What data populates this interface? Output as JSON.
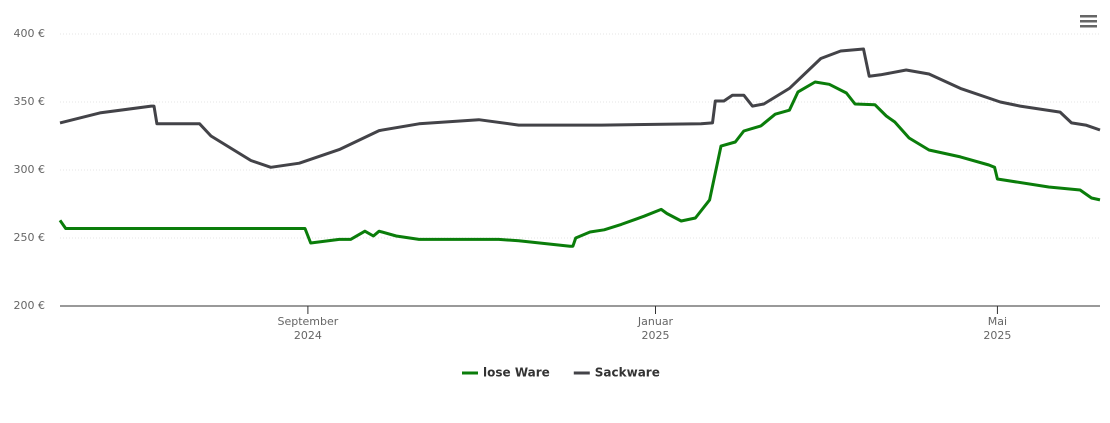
{
  "chart_data": {
    "type": "line",
    "xlim": [
      0,
      365
    ],
    "xticks": [
      {
        "value": 87,
        "label": "September",
        "year": "2024"
      },
      {
        "value": 209,
        "label": "Januar",
        "year": "2025"
      },
      {
        "value": 329,
        "label": "Mai",
        "year": "2025"
      }
    ],
    "ylim": [
      200,
      400
    ],
    "yticks": [
      {
        "value": 200,
        "label": "200 €"
      },
      {
        "value": 250,
        "label": "250 €"
      },
      {
        "value": 300,
        "label": "300 €"
      },
      {
        "value": 350,
        "label": "350 €"
      },
      {
        "value": 400,
        "label": "400 €"
      }
    ],
    "grid": true,
    "legend": "bottom",
    "series": [
      {
        "name": "lose Ware",
        "color": "#0a7d0a",
        "x": [
          0,
          2,
          86,
          88,
          98,
          102,
          107,
          110,
          112,
          118,
          126,
          154,
          161,
          179,
          180,
          181,
          186,
          191,
          197,
          205,
          211,
          213,
          218,
          223,
          228,
          232,
          237,
          240,
          246,
          251,
          256,
          259,
          265,
          270,
          276,
          279,
          286,
          290,
          293,
          298,
          305,
          316,
          326,
          328,
          329,
          347,
          358,
          362,
          365
        ],
        "values": [
          263,
          257,
          257,
          246.3,
          249,
          249,
          255,
          251.5,
          255,
          251.5,
          249,
          249,
          248,
          244,
          244,
          250,
          254.4,
          256,
          260,
          266,
          271,
          268,
          262.5,
          264.7,
          278,
          317.6,
          320.6,
          328.7,
          332.4,
          341,
          344,
          357.4,
          364.7,
          363,
          356.6,
          348.5,
          348,
          339.7,
          335.3,
          323.5,
          314.7,
          309.6,
          303.7,
          302,
          293.4,
          287.5,
          285.3,
          279.4,
          278
        ]
      },
      {
        "name": "Sackware",
        "color": "#434348",
        "x": [
          0,
          14,
          32,
          33,
          34,
          49,
          53,
          67,
          74,
          84,
          98,
          112,
          126,
          147,
          161,
          190,
          225,
          229,
          230,
          233,
          236,
          240,
          243,
          247,
          256,
          267,
          274,
          282,
          284,
          288,
          297,
          305,
          316,
          330,
          337,
          351,
          355,
          360,
          365
        ],
        "values": [
          334.6,
          342,
          347,
          347,
          334,
          334,
          325,
          307,
          302,
          305,
          315,
          329,
          334,
          337,
          333,
          333,
          334,
          334.6,
          350.7,
          350.7,
          355,
          355,
          347,
          348.5,
          360,
          382,
          387.5,
          389,
          369,
          370,
          373.5,
          370.6,
          360,
          350,
          347,
          342.6,
          334.6,
          333,
          329.4
        ]
      }
    ]
  }
}
